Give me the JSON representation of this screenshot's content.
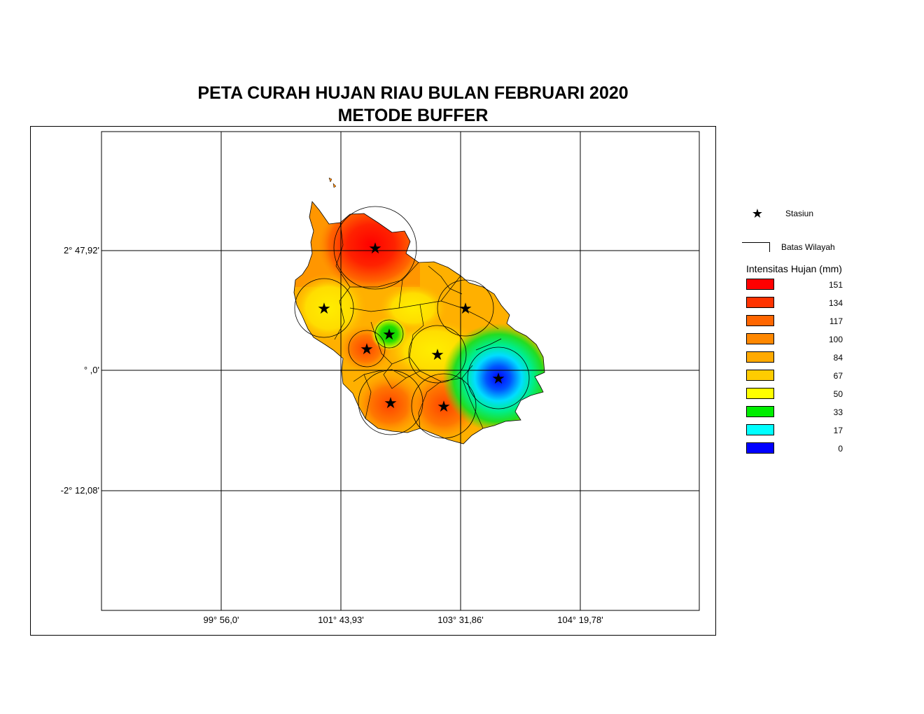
{
  "title": {
    "line1": "PETA CURAH HUJAN RIAU BULAN FEBRUARI 2020",
    "line2": "METODE BUFFER"
  },
  "grid": {
    "latitude_labels": [
      "2° 47,92'",
      "° ,0'",
      "-2° 12,08'"
    ],
    "longitude_labels": [
      "99° 56,0'",
      "101° 43,93'",
      "103° 31,86'",
      "104° 19,78'"
    ]
  },
  "legend": {
    "station_label": "Stasiun",
    "station_icon": "star-icon",
    "boundary_label": "Batas Wilayah",
    "intensity_title": "Intensitas Hujan (mm)",
    "classes": [
      {
        "value": "151",
        "color": "#ff0000"
      },
      {
        "value": "134",
        "color": "#ff3300"
      },
      {
        "value": "117",
        "color": "#ff6600"
      },
      {
        "value": "100",
        "color": "#ff8800"
      },
      {
        "value": "84",
        "color": "#ffaa00"
      },
      {
        "value": "67",
        "color": "#ffcc00"
      },
      {
        "value": "50",
        "color": "#ffff00"
      },
      {
        "value": "33",
        "color": "#00ee00"
      },
      {
        "value": "17",
        "color": "#00ffff"
      },
      {
        "value": "0",
        "color": "#0000ff"
      }
    ]
  },
  "colors": {
    "background_fill": "#ffb000",
    "boundary": "#000000",
    "frame": "#000000"
  },
  "stations_count": 9
}
